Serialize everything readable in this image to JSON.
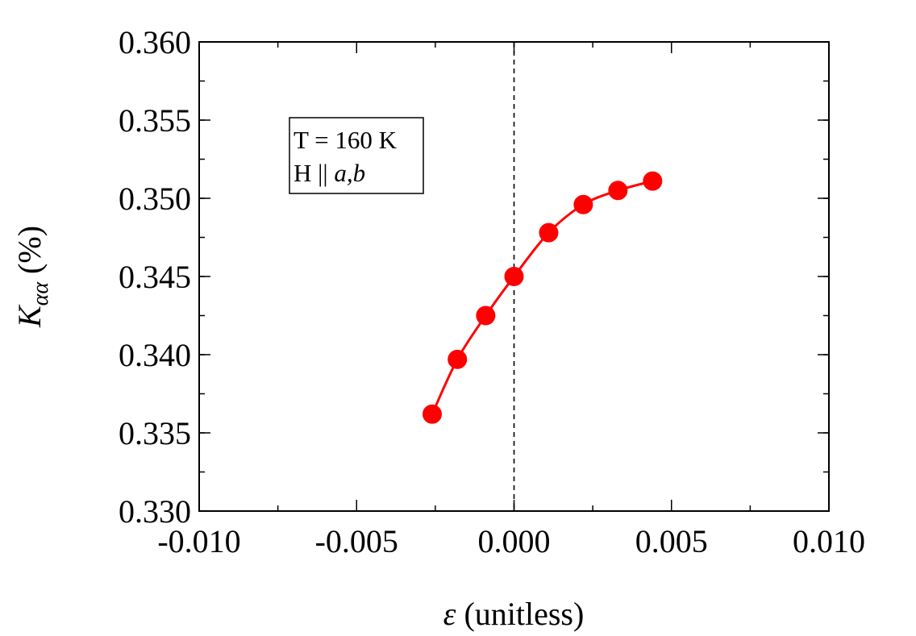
{
  "chart_data": {
    "type": "line",
    "title": "",
    "xlabel": {
      "symbol": "ε",
      "rest": " (unitless)"
    },
    "ylabel": {
      "symbol": "K",
      "subscript": "αα",
      "rest": " (%)"
    },
    "xlim": [
      -0.01,
      0.01
    ],
    "ylim": [
      0.33,
      0.36
    ],
    "xticks": [
      {
        "value": -0.01,
        "label": "-0.010"
      },
      {
        "value": -0.005,
        "label": "-0.005"
      },
      {
        "value": 0.0,
        "label": "0.000"
      },
      {
        "value": 0.005,
        "label": "0.005"
      },
      {
        "value": 0.01,
        "label": "0.010"
      }
    ],
    "yticks": [
      {
        "value": 0.33,
        "label": "0.330"
      },
      {
        "value": 0.335,
        "label": "0.335"
      },
      {
        "value": 0.34,
        "label": "0.340"
      },
      {
        "value": 0.345,
        "label": "0.345"
      },
      {
        "value": 0.35,
        "label": "0.350"
      },
      {
        "value": 0.355,
        "label": "0.355"
      },
      {
        "value": 0.36,
        "label": "0.360"
      }
    ],
    "minor_tick_step_x": 0.0025,
    "minor_tick_step_y": 0.0025,
    "reference_line": {
      "x": 0.0,
      "style": "dashed"
    },
    "grid": false,
    "series": [
      {
        "color": "#ff0000",
        "marker": "circle",
        "x": [
          -0.0026,
          -0.0018,
          -0.0009,
          0.0,
          0.0011,
          0.0022,
          0.0033,
          0.0044
        ],
        "y": [
          0.3362,
          0.3397,
          0.3425,
          0.345,
          0.3478,
          0.3496,
          0.3505,
          0.3511
        ]
      }
    ],
    "annotation": {
      "line1": "T = 160 K",
      "line2_prefix": "H || ",
      "line2_italic": "a,b",
      "placement": "top-left"
    }
  }
}
